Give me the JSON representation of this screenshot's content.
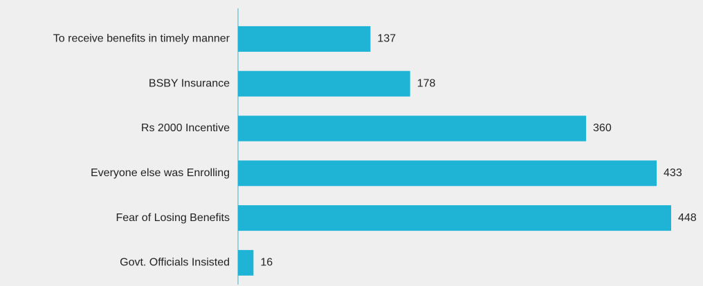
{
  "chart_data": {
    "type": "bar",
    "orientation": "horizontal",
    "categories": [
      "To receive benefits in timely manner",
      "BSBY Insurance",
      "Rs 2000 Incentive",
      "Everyone else was Enrolling",
      "Fear of Losing Benefits",
      "Govt. Officials Insisted"
    ],
    "values": [
      137,
      178,
      360,
      433,
      448,
      16
    ],
    "color": "#1fb3d6"
  }
}
